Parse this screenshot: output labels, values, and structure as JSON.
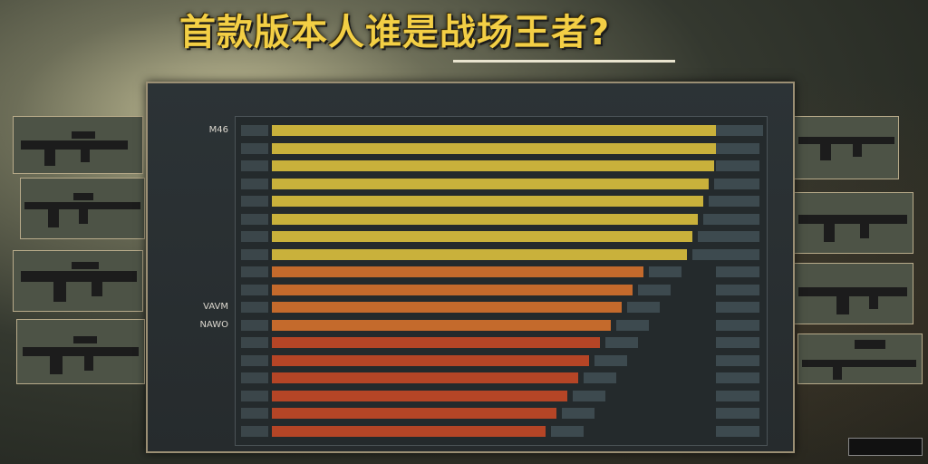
{
  "headline": "首款版本人谁是战场王者?",
  "panel": {
    "title": "",
    "tag": ""
  },
  "row_labels": [
    "M46",
    "",
    "",
    "",
    "",
    "",
    "",
    "",
    "",
    "",
    "VAVM",
    "NAWO",
    "",
    "",
    "",
    "",
    "",
    ""
  ],
  "colors": {
    "gold": "#f3cf45",
    "yellow_bar": "#c9b13b",
    "orange_bar": "#c46a2c",
    "red_bar": "#b54526",
    "accent_red": "#d7312a"
  }
}
